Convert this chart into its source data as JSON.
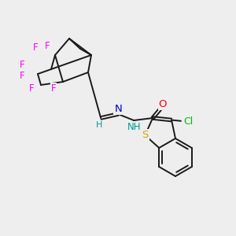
{
  "bg_color": "#eeeeee",
  "bond_color": "#1a1a1a",
  "atom_colors": {
    "F": "#ff00ff",
    "N": "#0000cc",
    "O": "#ff0000",
    "S": "#ccaa00",
    "Cl": "#00bb00",
    "H_label": "#009999",
    "C": "#1a1a1a"
  },
  "font_size_atom": 8.5,
  "fig_size": [
    3.0,
    3.0
  ],
  "dpi": 100
}
